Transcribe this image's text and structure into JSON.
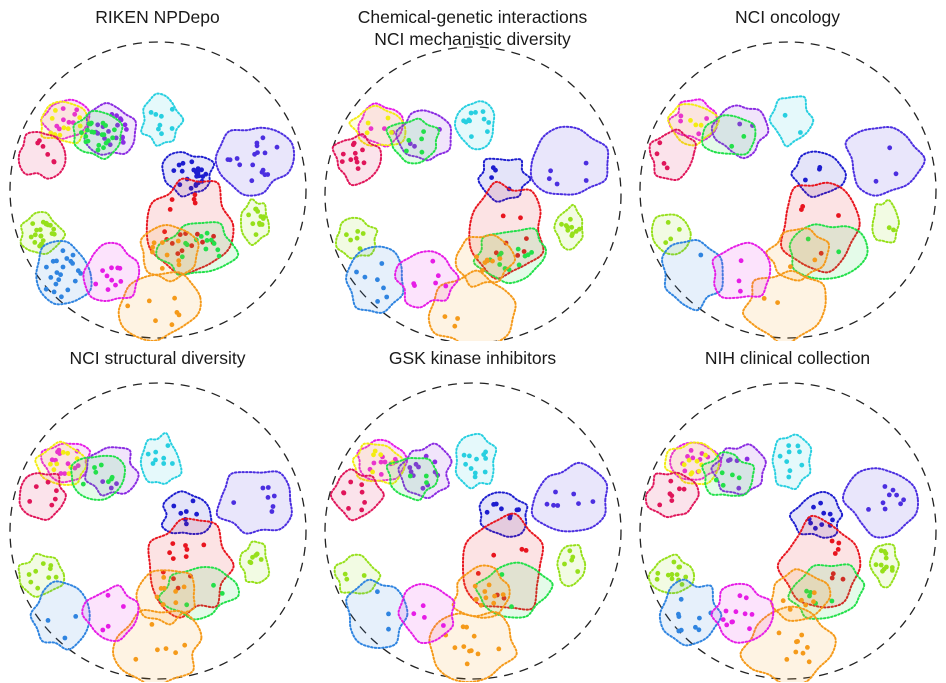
{
  "chart_data": {
    "type": "scatter",
    "description_of_layout": "circular cluster map",
    "colors": {
      "red": "#e8151f",
      "crimson": "#e0155a",
      "magenta": "#e61ce6",
      "purple": "#8a2be2",
      "blue": "#1d1dcf",
      "cyan": "#27cfe0",
      "green": "#22e04a",
      "lime": "#96e01a",
      "yellow": "#f3ec12",
      "orange": "#f59a1a",
      "sky": "#2f84e0",
      "peach": "#f2a07a"
    },
    "clusters": [
      {
        "id": "magenta-top",
        "color": "#e61ce6"
      },
      {
        "id": "yellow",
        "color": "#f3ec12"
      },
      {
        "id": "purple-top",
        "color": "#8a2be2"
      },
      {
        "id": "green-top",
        "color": "#22e04a"
      },
      {
        "id": "crimson",
        "color": "#e0155a"
      },
      {
        "id": "cyan",
        "color": "#27cfe0"
      },
      {
        "id": "blue-mid",
        "color": "#1d1dcf"
      },
      {
        "id": "purple-right",
        "color": "#4b2ee0"
      },
      {
        "id": "red-center",
        "color": "#e8151f"
      },
      {
        "id": "green-center",
        "color": "#22e04a"
      },
      {
        "id": "orange-center",
        "color": "#f59a1a"
      },
      {
        "id": "peach",
        "color": "#f59a1a"
      },
      {
        "id": "lime-right",
        "color": "#96e01a"
      },
      {
        "id": "lime-left",
        "color": "#96e01a"
      },
      {
        "id": "sky",
        "color": "#2f84e0"
      },
      {
        "id": "magenta-bottom",
        "color": "#e61ce6"
      }
    ],
    "panels": [
      {
        "title": "RIKEN NPDepo",
        "density": "high"
      },
      {
        "title": "Chemical-genetic interactions\nNCI mechanistic diversity",
        "density": "medium"
      },
      {
        "title": "NCI oncology",
        "density": "low"
      },
      {
        "title": "NCI structural diversity",
        "density": "medium"
      },
      {
        "title": "GSK kinase inhibitors",
        "density": "medium"
      },
      {
        "title": "NIH clinical collection",
        "density": "medium"
      }
    ]
  }
}
